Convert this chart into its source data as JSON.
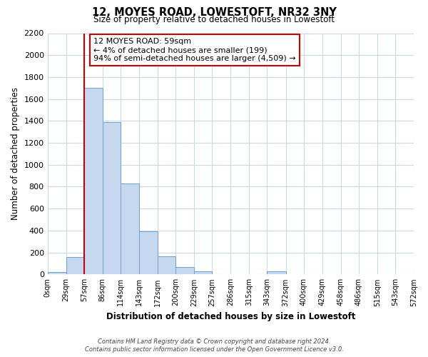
{
  "title": "12, MOYES ROAD, LOWESTOFT, NR32 3NY",
  "subtitle": "Size of property relative to detached houses in Lowestoft",
  "xlabel": "Distribution of detached houses by size in Lowestoft",
  "ylabel": "Number of detached properties",
  "bar_edges": [
    0,
    29,
    57,
    86,
    114,
    143,
    172,
    200,
    229,
    257,
    286,
    315,
    343,
    372,
    400,
    429,
    458,
    486,
    515,
    543,
    572
  ],
  "bar_heights": [
    20,
    160,
    1700,
    1390,
    830,
    390,
    165,
    65,
    30,
    5,
    0,
    0,
    25,
    0,
    0,
    0,
    0,
    0,
    0,
    0
  ],
  "tick_labels": [
    "0sqm",
    "29sqm",
    "57sqm",
    "86sqm",
    "114sqm",
    "143sqm",
    "172sqm",
    "200sqm",
    "229sqm",
    "257sqm",
    "286sqm",
    "315sqm",
    "343sqm",
    "372sqm",
    "400sqm",
    "429sqm",
    "458sqm",
    "486sqm",
    "515sqm",
    "543sqm",
    "572sqm"
  ],
  "bar_color": "#C5D8F0",
  "bar_edge_color": "#6CA0D0",
  "vline_x": 57,
  "vline_color": "#CC0000",
  "ylim": [
    0,
    2200
  ],
  "yticks": [
    0,
    200,
    400,
    600,
    800,
    1000,
    1200,
    1400,
    1600,
    1800,
    2000,
    2200
  ],
  "annotation_title": "12 MOYES ROAD: 59sqm",
  "annotation_line1": "← 4% of detached houses are smaller (199)",
  "annotation_line2": "94% of semi-detached houses are larger (4,509) →",
  "annotation_box_color": "#FFFFFF",
  "annotation_box_edge": "#CC0000",
  "footer_line1": "Contains HM Land Registry data © Crown copyright and database right 2024.",
  "footer_line2": "Contains public sector information licensed under the Open Government Licence v3.0.",
  "grid_color": "#C8D8E8",
  "background_color": "#FFFFFF"
}
